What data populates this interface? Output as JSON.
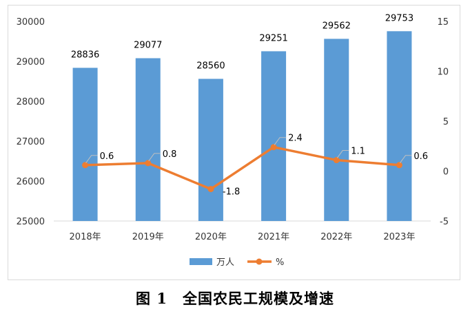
{
  "chart_data": {
    "type": "bar",
    "categories": [
      "2018年",
      "2019年",
      "2020年",
      "2021年",
      "2022年",
      "2023年"
    ],
    "series": [
      {
        "name": "万人",
        "type": "bar",
        "axis": "left",
        "color": "#5b9bd5",
        "values": [
          28836,
          29077,
          28560,
          29251,
          29562,
          29753
        ]
      },
      {
        "name": "%",
        "type": "line",
        "axis": "right",
        "color": "#ed7d31",
        "values": [
          0.6,
          0.8,
          -1.8,
          2.4,
          1.1,
          0.6
        ]
      }
    ],
    "bar_labels": [
      "28836",
      "29077",
      "28560",
      "29251",
      "29562",
      "29753"
    ],
    "line_labels": [
      "0.6",
      "0.8",
      "-1.8",
      "2.4",
      "1.1",
      "0.6"
    ],
    "y_left": {
      "min": 25000,
      "max": 30000,
      "ticks": [
        "25000",
        "26000",
        "27000",
        "28000",
        "29000",
        "30000"
      ]
    },
    "y_right": {
      "min": -5,
      "max": 15,
      "ticks": [
        "-5",
        "0",
        "5",
        "10",
        "15"
      ]
    },
    "grid": false,
    "legend": {
      "position": "bottom",
      "items": [
        "万人",
        "%"
      ]
    }
  },
  "caption": "图 1　全国农民工规模及增速"
}
